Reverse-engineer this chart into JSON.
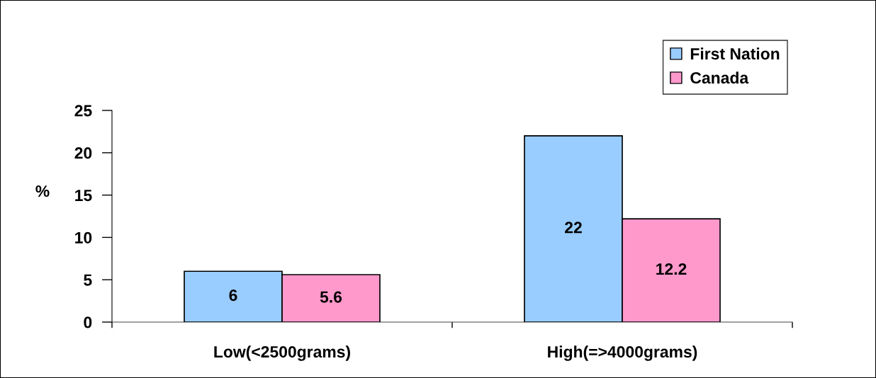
{
  "chart_data": {
    "type": "bar",
    "categories": [
      "Low(<2500grams)",
      "High(=>4000grams)"
    ],
    "series": [
      {
        "name": "First Nation",
        "color": "#99ccff",
        "values": [
          6,
          22
        ]
      },
      {
        "name": "Canada",
        "color": "#ff99cc",
        "values": [
          5.6,
          12.2
        ]
      }
    ],
    "ylabel": "%",
    "ylim": [
      0,
      25
    ],
    "yticks": [
      0,
      5,
      10,
      15,
      20,
      25
    ],
    "data_labels": true,
    "legend": "top right",
    "grid": false
  }
}
